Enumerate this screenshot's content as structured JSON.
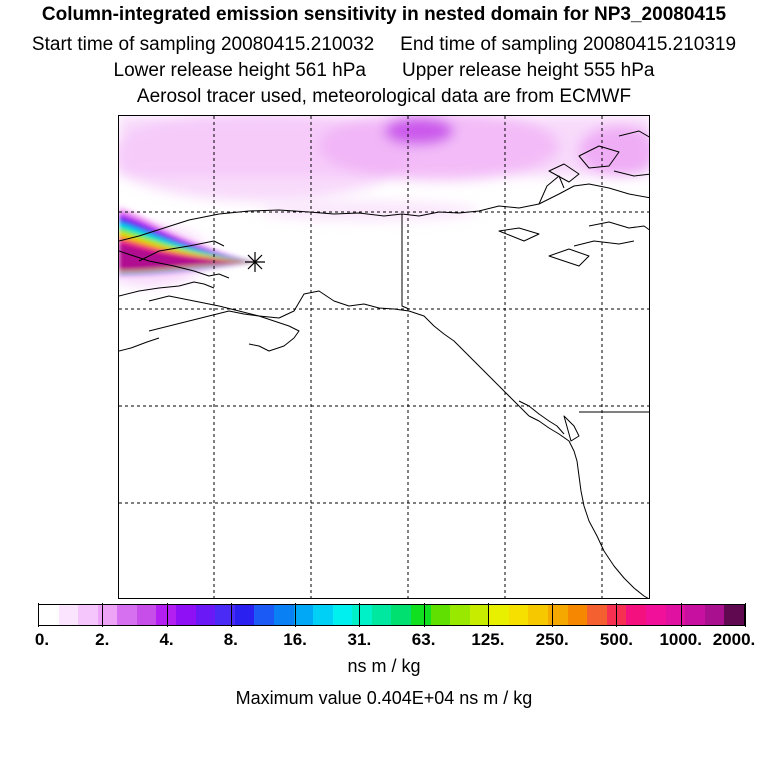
{
  "header": {
    "title": "Column-integrated emission sensitivity in nested domain for NP3_20080415",
    "line2a": "Start time of sampling 20080415.210032",
    "line2b": "End time of sampling 20080415.210319",
    "line3a": "Lower release height  561 hPa",
    "line3b": "Upper release height  555 hPa",
    "line4": "Aerosol tracer used, meteorological data are from ECMWF"
  },
  "colorbar": {
    "tick_labels": [
      "0.",
      "2.",
      "4.",
      "8.",
      "16.",
      "31.",
      "63.",
      "125.",
      "250.",
      "500.",
      "1000.",
      "2000."
    ],
    "colors": [
      "#ffffff",
      "#fbe4fd",
      "#f5c6fb",
      "#eda4f7",
      "#d770f0",
      "#c74ee8",
      "#b31ff0",
      "#9010f5",
      "#6a18f5",
      "#4a2af5",
      "#2a20f0",
      "#1c5af5",
      "#0a80f5",
      "#00a8f5",
      "#00d0f5",
      "#00f0f0",
      "#00f0c8",
      "#00e8a0",
      "#00e070",
      "#10e020",
      "#60e000",
      "#98e800",
      "#c8ec00",
      "#e8f000",
      "#f5e000",
      "#f5c800",
      "#f5a800",
      "#f58800",
      "#f56030",
      "#f53050",
      "#f51080",
      "#f0109a",
      "#e010a0",
      "#c810a0",
      "#a81090",
      "#600850"
    ],
    "unit": "ns m / kg",
    "max_text": "Maximum value  0.404E+04 ns m / kg"
  },
  "map": {
    "receptor_marker": "asterisk-marker",
    "plume_colors": [
      "#fbd4fd",
      "#f08af0",
      "#d050f0",
      "#8a14f0",
      "#3030f0",
      "#00a0f5",
      "#00f0e0",
      "#30e040",
      "#c8ec00",
      "#f5c000",
      "#f56030",
      "#f01090",
      "#b01090"
    ]
  }
}
